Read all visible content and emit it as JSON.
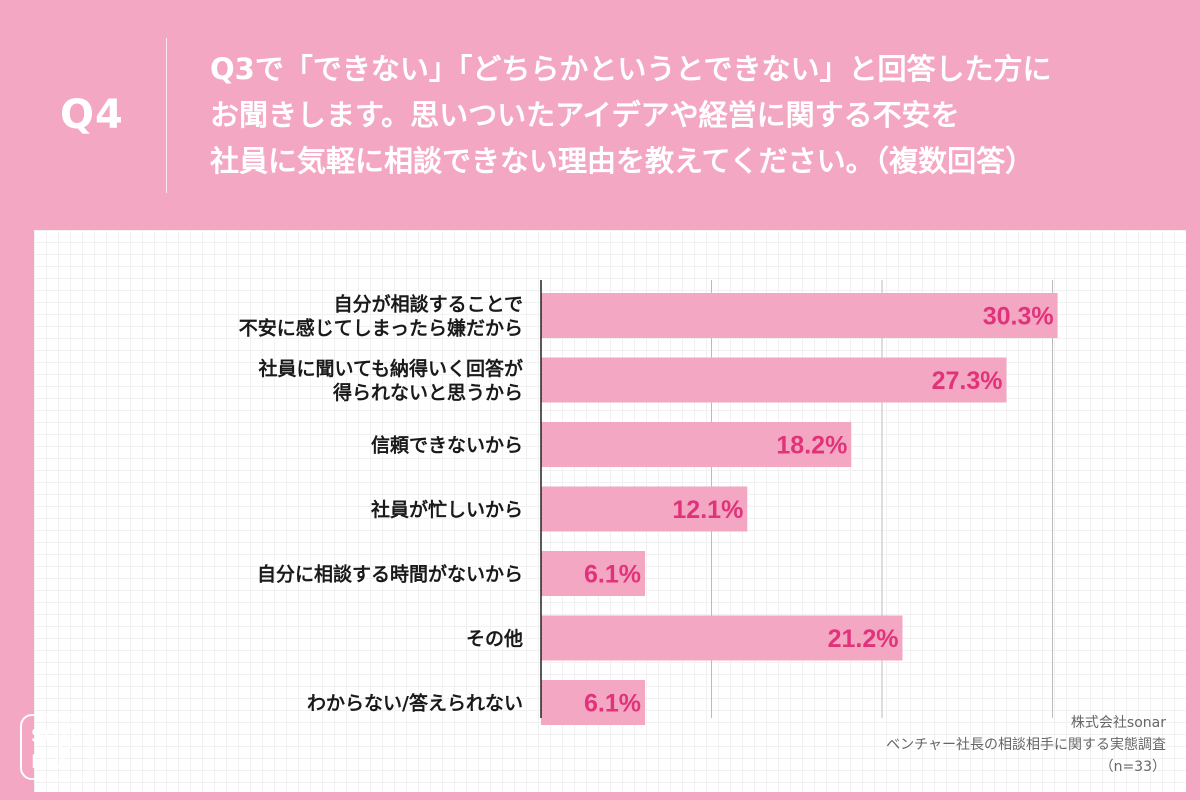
{
  "header": {
    "q_label": "Q4",
    "question_lines": [
      "Q3で「できない」「どちらかというとできない」と回答した方に",
      "お聞きします。思いついたアイデアや経営に関する不安を",
      "社員に気軽に相談できない理由を教えてください。（複数回答）"
    ]
  },
  "logo": {
    "line1": "so))",
    "line2": "nar"
  },
  "source": {
    "company": "株式会社sonar",
    "survey": "ベンチャー社長の相談相手に関する実態調査",
    "sample": "（n=33）"
  },
  "colors": {
    "background": "#f4a7c2",
    "bar": "#f4a7c2",
    "value_text": "#e0337a",
    "category_text": "#1a1a1a"
  },
  "chart_data": {
    "type": "bar",
    "orientation": "horizontal",
    "categories": [
      [
        "自分が相談することで",
        "不安に感じてしまったら嫌だから"
      ],
      [
        "社員に聞いても納得いく回答が",
        "得られないと思うから"
      ],
      [
        "信頼できないから"
      ],
      [
        "社員が忙しいから"
      ],
      [
        "自分に相談する時間がないから"
      ],
      [
        "その他"
      ],
      [
        "わからない/答えられない"
      ]
    ],
    "values": [
      30.3,
      27.3,
      18.2,
      12.1,
      6.1,
      21.2,
      6.1
    ],
    "value_labels": [
      "30.3%",
      "27.3%",
      "18.2%",
      "12.1%",
      "6.1%",
      "21.2%",
      "6.1%"
    ],
    "xlim": [
      0,
      40
    ],
    "grid": true,
    "unit": "%"
  }
}
